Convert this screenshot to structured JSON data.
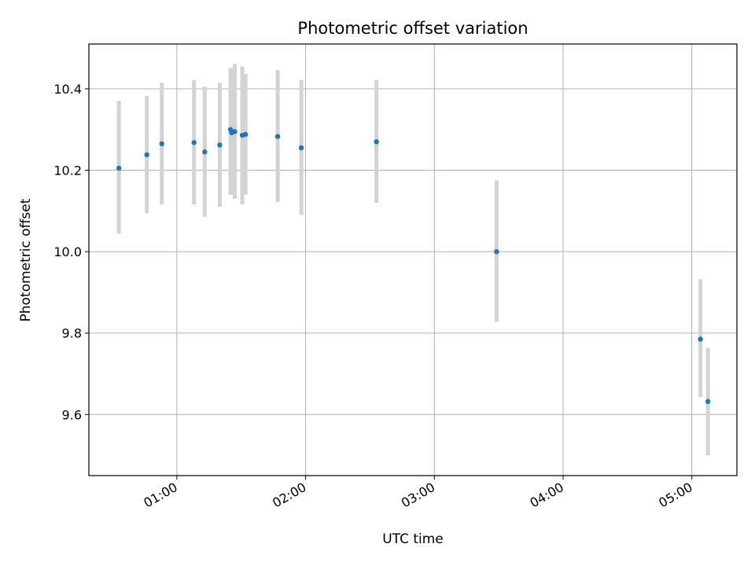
{
  "chart_data": {
    "type": "scatter",
    "title": "Photometric offset variation",
    "xlabel": "UTC time",
    "ylabel": "Photometric offset",
    "xlim": [
      "00:19",
      "05:21"
    ],
    "ylim": [
      9.45,
      10.51
    ],
    "grid": true,
    "x_ticks": [
      "01:00",
      "02:00",
      "03:00",
      "04:00",
      "05:00"
    ],
    "y_ticks": [
      9.6,
      9.8,
      10.0,
      10.2,
      10.4
    ],
    "y_tick_labels": [
      "9.6",
      "9.8",
      "10.0",
      "10.2",
      "10.4"
    ],
    "point_color": "#1f77b4",
    "errorbar_color": "#d3d3d3",
    "points": [
      {
        "t": "00:33",
        "y": 10.205,
        "lo": 10.045,
        "hi": 10.37
      },
      {
        "t": "00:46",
        "y": 10.238,
        "lo": 10.094,
        "hi": 10.382
      },
      {
        "t": "00:53",
        "y": 10.265,
        "lo": 10.116,
        "hi": 10.415
      },
      {
        "t": "01:08",
        "y": 10.268,
        "lo": 10.116,
        "hi": 10.421
      },
      {
        "t": "01:13",
        "y": 10.245,
        "lo": 10.086,
        "hi": 10.405
      },
      {
        "t": "01:20",
        "y": 10.262,
        "lo": 10.11,
        "hi": 10.415
      },
      {
        "t": "01:25",
        "y": 10.3,
        "lo": 10.14,
        "hi": 10.451
      },
      {
        "t": "01:25.5",
        "y": 10.292,
        "lo": 10.14,
        "hi": 10.451
      },
      {
        "t": "01:27",
        "y": 10.295,
        "lo": 10.13,
        "hi": 10.461
      },
      {
        "t": "01:30.5",
        "y": 10.286,
        "lo": 10.116,
        "hi": 10.455
      },
      {
        "t": "01:32",
        "y": 10.288,
        "lo": 10.14,
        "hi": 10.436
      },
      {
        "t": "01:47",
        "y": 10.283,
        "lo": 10.122,
        "hi": 10.446
      },
      {
        "t": "01:58",
        "y": 10.255,
        "lo": 10.09,
        "hi": 10.421
      },
      {
        "t": "02:33",
        "y": 10.27,
        "lo": 10.12,
        "hi": 10.421
      },
      {
        "t": "03:29",
        "y": 10.0,
        "lo": 9.828,
        "hi": 10.175
      },
      {
        "t": "05:04",
        "y": 9.785,
        "lo": 9.643,
        "hi": 9.932
      },
      {
        "t": "05:07.5",
        "y": 9.632,
        "lo": 9.5,
        "hi": 9.763
      }
    ]
  }
}
